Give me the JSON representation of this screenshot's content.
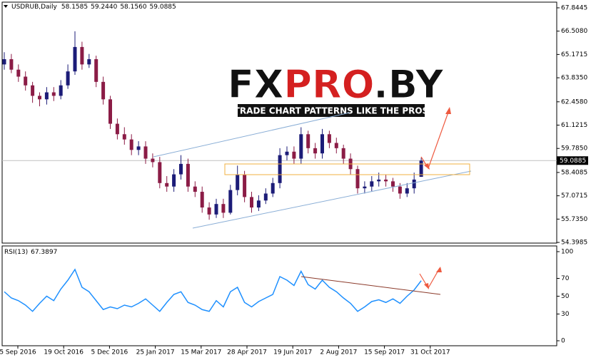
{
  "chart_data": [
    {
      "type": "candlestick",
      "symbol": "USDRUB,Daily",
      "ohlc_labels": [
        "58.1585",
        "59.2440",
        "58.1560",
        "59.0885"
      ],
      "open": [
        64.6,
        64.9,
        64.3,
        63.9,
        63.4,
        62.8,
        62.6,
        63.0,
        62.8,
        63.4,
        64.2,
        65.6,
        64.6,
        64.9,
        63.6,
        62.6,
        61.2,
        60.6,
        60.3,
        59.7,
        59.9,
        59.2,
        59.0,
        57.8,
        57.6,
        58.3,
        58.9,
        57.6,
        57.3,
        56.4,
        56.0,
        56.6,
        56.1,
        57.4,
        58.3,
        57.0,
        56.4,
        56.8,
        57.2,
        57.8,
        59.4,
        59.6,
        59.2,
        60.6,
        59.8,
        59.5,
        60.6,
        60.1,
        59.8,
        59.2,
        58.6,
        57.5,
        57.6,
        57.9,
        58.0,
        57.9,
        57.6,
        57.2,
        57.5,
        58.1585
      ],
      "high": [
        65.3,
        65.2,
        64.6,
        64.2,
        63.6,
        63.0,
        63.3,
        63.3,
        63.7,
        64.6,
        66.5,
        65.9,
        65.2,
        65.1,
        63.9,
        62.8,
        61.5,
        61.0,
        60.6,
        60.2,
        60.2,
        59.5,
        59.3,
        58.2,
        58.6,
        59.4,
        59.2,
        57.9,
        57.6,
        56.7,
        56.9,
        56.9,
        57.7,
        58.8,
        58.5,
        57.3,
        57.1,
        57.5,
        58.1,
        59.8,
        59.9,
        59.9,
        61.0,
        60.8,
        60.1,
        60.9,
        60.8,
        60.4,
        60.0,
        59.5,
        58.8,
        57.9,
        58.2,
        58.4,
        58.3,
        58.1,
        57.8,
        57.8,
        58.4,
        59.244
      ],
      "low": [
        64.3,
        64.1,
        63.6,
        63.1,
        62.4,
        62.2,
        62.3,
        62.5,
        62.6,
        63.2,
        64.0,
        64.3,
        64.4,
        63.3,
        62.3,
        60.9,
        60.3,
        60.0,
        59.4,
        59.4,
        58.9,
        58.7,
        57.5,
        57.3,
        57.3,
        58.0,
        57.3,
        57.0,
        56.1,
        55.7,
        55.8,
        55.8,
        56.0,
        57.1,
        56.7,
        56.1,
        56.2,
        56.6,
        57.0,
        57.5,
        59.1,
        58.9,
        58.9,
        59.5,
        59.2,
        59.2,
        59.8,
        59.5,
        58.9,
        58.3,
        57.2,
        57.2,
        57.3,
        57.6,
        57.6,
        57.3,
        56.9,
        57.0,
        57.2,
        58.156
      ],
      "close": [
        64.9,
        64.3,
        63.9,
        63.4,
        62.8,
        62.6,
        63.0,
        62.8,
        63.4,
        64.2,
        65.6,
        64.6,
        64.9,
        63.6,
        62.6,
        61.2,
        60.6,
        60.3,
        59.7,
        59.9,
        59.2,
        59.0,
        57.8,
        57.6,
        58.3,
        58.9,
        57.6,
        57.3,
        56.4,
        56.0,
        56.6,
        56.1,
        57.4,
        58.3,
        57.0,
        56.4,
        56.8,
        57.2,
        57.8,
        59.4,
        59.6,
        59.2,
        60.6,
        59.8,
        59.5,
        60.6,
        60.1,
        59.8,
        59.2,
        58.6,
        57.5,
        57.6,
        57.9,
        58.0,
        57.9,
        57.6,
        57.2,
        57.5,
        58.0,
        59.0885
      ],
      "up_color": "#1c1c78",
      "down_color": "#8b1c46",
      "current_price": 59.0885,
      "ylim": [
        54.36,
        68.17
      ],
      "yticks": [
        67.8445,
        {
          "value": 66.508,
          "label": "66.5080"
        },
        65.1715,
        {
          "value": 63.835,
          "label": "63.8350"
        },
        {
          "value": 62.458,
          "label": "62.4580"
        },
        61.1215,
        {
          "value": 59.785,
          "label": "59.7850"
        },
        58.4085,
        57.0715,
        {
          "value": 55.735,
          "label": "55.7350"
        },
        54.3985
      ],
      "x_labels": [
        "5 Sep 2016",
        "19 Oct 2016",
        "5 Dec 2016",
        "25 Jan 2017",
        "15 Mar 2017",
        "28 Apr 2017",
        "19 Jun 2017",
        "2 Aug 2017",
        "15 Sep 2017",
        "31 Oct 2017"
      ],
      "watermark": {
        "parts": [
          "FX",
          "PRO",
          ".BY"
        ],
        "tagline": "TRADE CHART PATTERNS LIKE THE PROS"
      }
    },
    {
      "type": "line",
      "name": "RSI(13)",
      "color": "#1e90ff",
      "values": [
        55,
        48,
        45,
        40,
        33,
        42,
        50,
        45,
        58,
        68,
        80,
        60,
        55,
        45,
        35,
        38,
        36,
        40,
        38,
        42,
        47,
        40,
        33,
        43,
        52,
        55,
        43,
        40,
        35,
        33,
        45,
        38,
        55,
        60,
        43,
        38,
        44,
        48,
        52,
        72,
        68,
        62,
        78,
        63,
        58,
        68,
        60,
        55,
        48,
        42,
        33,
        38,
        44,
        46,
        43,
        47,
        42,
        50,
        57,
        67.3897
      ],
      "ylim": [
        -5.6,
        106.4
      ],
      "yticks": [
        100,
        70,
        50,
        30,
        0
      ]
    }
  ]
}
